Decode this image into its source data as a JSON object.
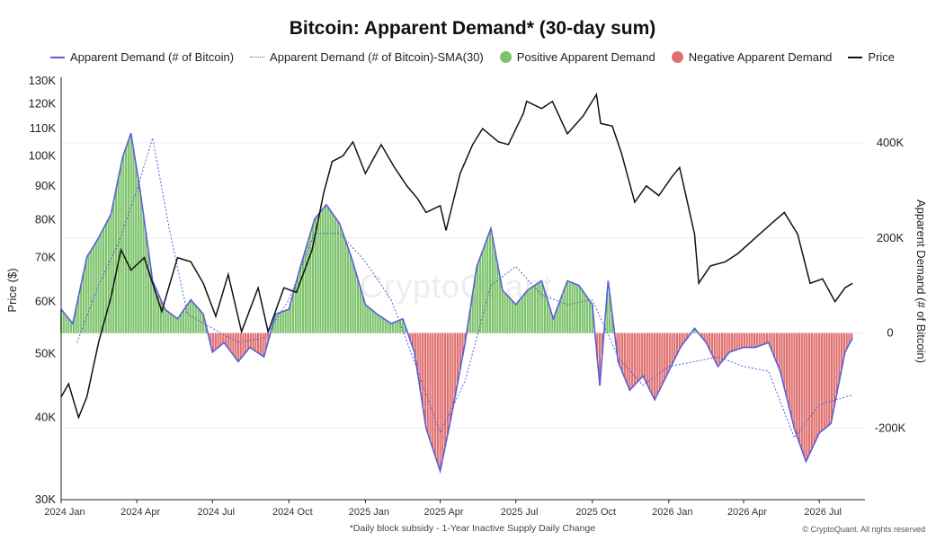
{
  "chart_data": {
    "type": "area",
    "title": "Bitcoin: Apparent Demand* (30-day sum)",
    "ylabel_left": "Price ($)",
    "ylabel_right": "Apparent Demand (# of Bitcoin)",
    "footnote": "*Daily block subsidy - 1-Year Inactive Supply Daily Change",
    "credit": "© CryptoQuant. All rights reserved",
    "watermark": "CryptoQuant",
    "legend": [
      {
        "label": "Apparent Demand (# of Bitcoin)",
        "style": "line",
        "color": "#5a5fd6"
      },
      {
        "label": "Apparent Demand (# of Bitcoin)-SMA(30)",
        "style": "dotted",
        "color": "#5a5fd6"
      },
      {
        "label": "Positive Apparent Demand",
        "style": "dot",
        "color": "#7cc36a"
      },
      {
        "label": "Negative Apparent Demand",
        "style": "dot",
        "color": "#e07070"
      },
      {
        "label": "Price",
        "style": "line",
        "color": "#111111"
      }
    ],
    "x_ticks": [
      "2024 Jan",
      "2024 Apr",
      "2024 Jul",
      "2024 Oct",
      "2025 Jan",
      "2025 Apr",
      "2025 Jul",
      "2025 Oct",
      "2026 Jan",
      "2026 Apr",
      "2026 Jul"
    ],
    "left_axis": {
      "scale": "log",
      "range": [
        30000,
        130000
      ],
      "ticks": [
        {
          "v": 30000,
          "label": "30K"
        },
        {
          "v": 40000,
          "label": "40K"
        },
        {
          "v": 50000,
          "label": "50K"
        },
        {
          "v": 60000,
          "label": "60K"
        },
        {
          "v": 70000,
          "label": "70K"
        },
        {
          "v": 80000,
          "label": "80K"
        },
        {
          "v": 90000,
          "label": "90K"
        },
        {
          "v": 100000,
          "label": "100K"
        },
        {
          "v": 110000,
          "label": "110K"
        },
        {
          "v": 120000,
          "label": "120K"
        },
        {
          "v": 130000,
          "label": "130K"
        }
      ]
    },
    "right_axis": {
      "scale": "linear",
      "range": [
        -350000,
        530000
      ],
      "ticks": [
        {
          "v": 400000,
          "label": "400K"
        },
        {
          "v": 200000,
          "label": "200K"
        },
        {
          "v": 0,
          "label": "0"
        },
        {
          "v": -200000,
          "label": "-200K"
        }
      ]
    },
    "price_series": {
      "name": "Price",
      "x": [
        "2024-01-01",
        "2024-01-10",
        "2024-01-22",
        "2024-02-01",
        "2024-02-15",
        "2024-03-01",
        "2024-03-13",
        "2024-03-25",
        "2024-04-10",
        "2024-04-20",
        "2024-05-01",
        "2024-05-20",
        "2024-06-05",
        "2024-06-20",
        "2024-07-05",
        "2024-07-20",
        "2024-08-05",
        "2024-08-25",
        "2024-09-06",
        "2024-09-25",
        "2024-10-10",
        "2024-10-29",
        "2024-11-12",
        "2024-11-22",
        "2024-12-05",
        "2024-12-17",
        "2025-01-01",
        "2025-01-20",
        "2025-02-05",
        "2025-02-20",
        "2025-03-05",
        "2025-03-15",
        "2025-04-01",
        "2025-04-08",
        "2025-04-25",
        "2025-05-10",
        "2025-05-22",
        "2025-06-10",
        "2025-06-22",
        "2025-07-10",
        "2025-07-14",
        "2025-08-01",
        "2025-08-14",
        "2025-09-01",
        "2025-09-20",
        "2025-10-06",
        "2025-10-11",
        "2025-10-25",
        "2025-11-05",
        "2025-11-21",
        "2025-12-05",
        "2025-12-20",
        "2026-01-05",
        "2026-01-14",
        "2026-02-01",
        "2026-02-06",
        "2026-02-20",
        "2026-03-10",
        "2026-03-25",
        "2026-04-15",
        "2026-05-05",
        "2026-05-20",
        "2026-06-05",
        "2026-06-20",
        "2026-07-05",
        "2026-07-20",
        "2026-08-01",
        "2026-08-10"
      ],
      "y": [
        43000,
        45000,
        40000,
        43000,
        52000,
        61000,
        72000,
        67000,
        70000,
        64000,
        58000,
        70000,
        69000,
        64000,
        57000,
        66000,
        54000,
        63000,
        54000,
        63000,
        62000,
        72000,
        88000,
        98000,
        100000,
        105000,
        94000,
        104000,
        96000,
        90000,
        86000,
        82000,
        84000,
        77000,
        94000,
        104000,
        110000,
        105000,
        104000,
        116000,
        121000,
        118000,
        121000,
        108000,
        115000,
        124000,
        112000,
        111000,
        101000,
        85000,
        90000,
        87000,
        93000,
        96000,
        76000,
        64000,
        68000,
        69000,
        71000,
        75000,
        79000,
        82000,
        76000,
        64000,
        65000,
        60000,
        63000,
        64000
      ]
    },
    "demand_series": {
      "name": "Apparent Demand (# of Bitcoin)",
      "x": [
        "2024-01-01",
        "2024-01-15",
        "2024-02-01",
        "2024-02-15",
        "2024-03-01",
        "2024-03-15",
        "2024-03-25",
        "2024-04-05",
        "2024-04-20",
        "2024-05-05",
        "2024-05-20",
        "2024-06-05",
        "2024-06-20",
        "2024-07-01",
        "2024-07-15",
        "2024-08-01",
        "2024-08-15",
        "2024-09-01",
        "2024-09-15",
        "2024-10-01",
        "2024-10-15",
        "2024-11-01",
        "2024-11-15",
        "2024-12-01",
        "2024-12-15",
        "2025-01-01",
        "2025-01-15",
        "2025-02-01",
        "2025-02-15",
        "2025-03-01",
        "2025-03-15",
        "2025-04-01",
        "2025-04-15",
        "2025-05-01",
        "2025-05-15",
        "2025-06-01",
        "2025-06-15",
        "2025-07-01",
        "2025-07-15",
        "2025-08-01",
        "2025-08-15",
        "2025-09-01",
        "2025-09-15",
        "2025-10-01",
        "2025-10-10",
        "2025-10-20",
        "2025-11-01",
        "2025-11-15",
        "2025-12-01",
        "2025-12-15",
        "2026-01-01",
        "2026-01-15",
        "2026-02-01",
        "2026-02-15",
        "2026-03-01",
        "2026-03-15",
        "2026-04-01",
        "2026-04-15",
        "2026-05-01",
        "2026-05-15",
        "2026-06-01",
        "2026-06-15",
        "2026-07-01",
        "2026-07-15",
        "2026-08-01",
        "2026-08-10"
      ],
      "y": [
        50000,
        20000,
        160000,
        200000,
        250000,
        370000,
        420000,
        300000,
        110000,
        50000,
        30000,
        70000,
        40000,
        -40000,
        -20000,
        -60000,
        -30000,
        -50000,
        40000,
        50000,
        140000,
        240000,
        270000,
        230000,
        160000,
        60000,
        40000,
        20000,
        30000,
        -40000,
        -200000,
        -290000,
        -170000,
        -20000,
        140000,
        220000,
        90000,
        60000,
        90000,
        110000,
        30000,
        110000,
        100000,
        60000,
        -110000,
        110000,
        -60000,
        -120000,
        -90000,
        -140000,
        -80000,
        -30000,
        10000,
        -20000,
        -70000,
        -40000,
        -30000,
        -30000,
        -20000,
        -80000,
        -200000,
        -270000,
        -210000,
        -190000,
        -40000,
        -10000
      ]
    },
    "sma_series": {
      "name": "Apparent Demand (# of Bitcoin)-SMA(30)",
      "x": [
        "2024-01-20",
        "2024-02-15",
        "2024-03-10",
        "2024-04-01",
        "2024-04-20",
        "2024-05-10",
        "2024-06-01",
        "2024-07-01",
        "2024-08-01",
        "2024-09-01",
        "2024-10-01",
        "2024-11-01",
        "2024-12-01",
        "2025-01-01",
        "2025-02-01",
        "2025-03-01",
        "2025-04-01",
        "2025-05-01",
        "2025-06-01",
        "2025-07-01",
        "2025-08-01",
        "2025-09-01",
        "2025-10-01",
        "2025-11-01",
        "2025-12-01",
        "2026-01-01",
        "2026-02-01",
        "2026-03-01",
        "2026-04-01",
        "2026-05-01",
        "2026-06-01",
        "2026-07-01",
        "2026-08-10"
      ],
      "y": [
        -20000,
        100000,
        190000,
        300000,
        410000,
        220000,
        40000,
        10000,
        -20000,
        -10000,
        70000,
        210000,
        210000,
        150000,
        70000,
        -60000,
        -210000,
        -100000,
        100000,
        140000,
        80000,
        60000,
        70000,
        -50000,
        -110000,
        -70000,
        -60000,
        -50000,
        -70000,
        -80000,
        -220000,
        -150000,
        -130000
      ]
    }
  }
}
